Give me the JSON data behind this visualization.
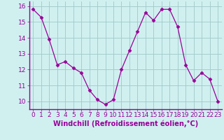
{
  "x": [
    0,
    1,
    2,
    3,
    4,
    5,
    6,
    7,
    8,
    9,
    10,
    11,
    12,
    13,
    14,
    15,
    16,
    17,
    18,
    19,
    20,
    21,
    22,
    23
  ],
  "y": [
    15.8,
    15.3,
    13.9,
    12.3,
    12.5,
    12.1,
    11.8,
    10.7,
    10.1,
    9.8,
    10.1,
    12.0,
    13.2,
    14.4,
    15.6,
    15.1,
    15.8,
    15.8,
    14.7,
    12.3,
    11.3,
    11.8,
    11.4,
    10.0
  ],
  "line_color": "#990099",
  "marker": "D",
  "marker_size": 2.5,
  "bg_color": "#d0f0f0",
  "grid_color": "#a0c8c8",
  "xlabel": "Windchill (Refroidissement éolien,°C)",
  "axis_color": "#990099",
  "tick_color": "#990099",
  "ylim": [
    9.5,
    16.3
  ],
  "xlim": [
    -0.5,
    23.5
  ],
  "yticks": [
    10,
    11,
    12,
    13,
    14,
    15,
    16
  ],
  "xticks": [
    0,
    1,
    2,
    3,
    4,
    5,
    6,
    7,
    8,
    9,
    10,
    11,
    12,
    13,
    14,
    15,
    16,
    17,
    18,
    19,
    20,
    21,
    22,
    23
  ],
  "label_fontsize": 6.5,
  "tick_fontsize": 6.5,
  "xlabel_fontsize": 7
}
